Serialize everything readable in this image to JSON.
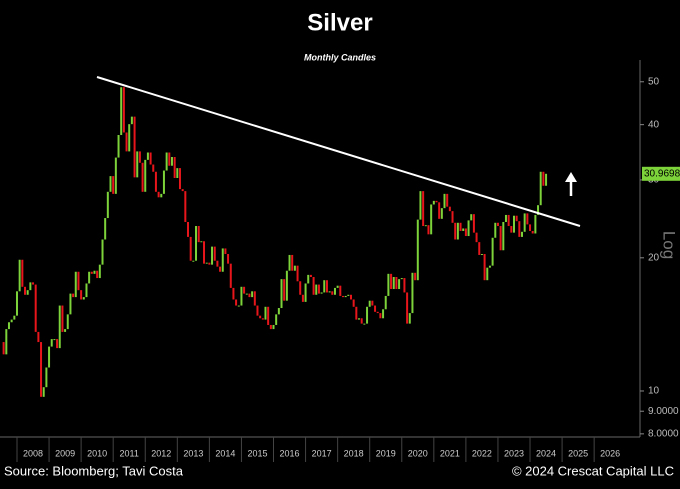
{
  "chart_data": {
    "type": "candlestick",
    "title": "Silver",
    "subtitle": "Monthly Candles",
    "y_axis_label": "Log",
    "log_scale": true,
    "up_color": "#7dd33a",
    "down_color": "#e8161b",
    "last_price": 30.9698,
    "source": "Source: Bloomberg; Tavi Costa",
    "copyright": "© 2024 Crescat Capital LLC",
    "xlim": [
      2007.47,
      2027.43
    ],
    "xticks": [
      2008,
      2009,
      2010,
      2011,
      2012,
      2013,
      2014,
      2015,
      2016,
      2017,
      2018,
      2019,
      2020,
      2021,
      2022,
      2023,
      2024,
      2025,
      2026
    ],
    "ylim": [
      7.87,
      56
    ],
    "yticks": [
      {
        "value": 8,
        "label": "8.0000"
      },
      {
        "value": 9,
        "label": "9.0000"
      },
      10,
      20,
      30,
      40,
      50
    ],
    "series": [
      {
        "name": "Silver",
        "x": [
          2007.5,
          2007.583,
          2007.667,
          2007.75,
          2007.833,
          2007.917,
          2008,
          2008.083,
          2008.167,
          2008.25,
          2008.333,
          2008.417,
          2008.5,
          2008.583,
          2008.667,
          2008.75,
          2008.833,
          2008.917,
          2009,
          2009.083,
          2009.167,
          2009.25,
          2009.333,
          2009.417,
          2009.5,
          2009.583,
          2009.667,
          2009.75,
          2009.833,
          2009.917,
          2010,
          2010.083,
          2010.167,
          2010.25,
          2010.333,
          2010.417,
          2010.5,
          2010.583,
          2010.667,
          2010.75,
          2010.833,
          2010.917,
          2011,
          2011.083,
          2011.167,
          2011.25,
          2011.333,
          2011.417,
          2011.5,
          2011.583,
          2011.667,
          2011.75,
          2011.833,
          2011.917,
          2012,
          2012.083,
          2012.167,
          2012.25,
          2012.333,
          2012.417,
          2012.5,
          2012.583,
          2012.667,
          2012.75,
          2012.833,
          2012.917,
          2013,
          2013.083,
          2013.167,
          2013.25,
          2013.333,
          2013.417,
          2013.5,
          2013.583,
          2013.667,
          2013.75,
          2013.833,
          2013.917,
          2014,
          2014.083,
          2014.167,
          2014.25,
          2014.333,
          2014.417,
          2014.5,
          2014.583,
          2014.667,
          2014.75,
          2014.833,
          2014.917,
          2015,
          2015.083,
          2015.167,
          2015.25,
          2015.333,
          2015.417,
          2015.5,
          2015.583,
          2015.667,
          2015.75,
          2015.833,
          2015.917,
          2016,
          2016.083,
          2016.167,
          2016.25,
          2016.333,
          2016.417,
          2016.5,
          2016.583,
          2016.667,
          2016.75,
          2016.833,
          2016.917,
          2017,
          2017.083,
          2017.167,
          2017.25,
          2017.333,
          2017.417,
          2017.5,
          2017.583,
          2017.667,
          2017.75,
          2017.833,
          2017.917,
          2018,
          2018.083,
          2018.167,
          2018.25,
          2018.333,
          2018.417,
          2018.5,
          2018.583,
          2018.667,
          2018.75,
          2018.833,
          2018.917,
          2019,
          2019.083,
          2019.167,
          2019.25,
          2019.333,
          2019.417,
          2019.5,
          2019.583,
          2019.667,
          2019.75,
          2019.833,
          2019.917,
          2020,
          2020.083,
          2020.167,
          2020.25,
          2020.333,
          2020.417,
          2020.5,
          2020.583,
          2020.667,
          2020.75,
          2020.833,
          2020.917,
          2021,
          2021.083,
          2021.167,
          2021.25,
          2021.333,
          2021.417,
          2021.5,
          2021.583,
          2021.667,
          2021.75,
          2021.833,
          2021.917,
          2022,
          2022.083,
          2022.167,
          2022.25,
          2022.333,
          2022.417,
          2022.5,
          2022.583,
          2022.667,
          2022.75,
          2022.833,
          2022.917,
          2023,
          2023.083,
          2023.167,
          2023.25,
          2023.333,
          2023.417,
          2023.5,
          2023.583,
          2023.667,
          2023.75,
          2023.833,
          2023.917,
          2024,
          2024.083,
          2024.167,
          2024.25,
          2024.333,
          2024.417,
          2024.5
        ],
        "values": [
          12.9,
          12.1,
          13.8,
          14.3,
          14.5,
          14.8,
          16.8,
          19.8,
          17.2,
          16.5,
          16.9,
          17.6,
          17.4,
          13.6,
          12.9,
          9.7,
          10.2,
          11.3,
          12.6,
          13.1,
          13.1,
          12.5,
          15.6,
          13.6,
          13.8,
          14.9,
          16.6,
          16.3,
          18.6,
          16.9,
          16.1,
          16.3,
          17.5,
          18.6,
          18.4,
          18.7,
          18.0,
          19.3,
          22.0,
          24.6,
          28.2,
          30.6,
          27.9,
          33.7,
          37.9,
          48.6,
          38.4,
          34.8,
          40.1,
          41.7,
          30.4,
          34.8,
          32.8,
          28.2,
          33.3,
          34.6,
          32.5,
          31.3,
          28.2,
          27.4,
          27.9,
          31.5,
          34.6,
          32.3,
          33.8,
          30.3,
          31.9,
          28.6,
          28.3,
          24.1,
          22.3,
          19.7,
          19.7,
          23.6,
          21.7,
          21.8,
          19.4,
          19.5,
          19.3,
          21.2,
          19.7,
          19.1,
          18.6,
          21.0,
          20.4,
          19.4,
          17.1,
          16.1,
          15.6,
          15.6,
          17.2,
          16.6,
          16.6,
          16.3,
          16.8,
          15.6,
          14.8,
          14.6,
          14.5,
          15.5,
          14.1,
          13.8,
          14.1,
          14.9,
          15.4,
          17.9,
          16.0,
          18.7,
          20.3,
          18.7,
          19.2,
          17.7,
          16.5,
          15.9,
          17.5,
          18.3,
          18.1,
          16.5,
          17.4,
          16.6,
          16.7,
          17.8,
          16.7,
          16.8,
          16.5,
          17.1,
          17.3,
          16.4,
          16.3,
          16.4,
          16.5,
          16.1,
          15.5,
          14.5,
          14.6,
          14.2,
          14.2,
          15.5,
          16.0,
          15.6,
          15.1,
          15.0,
          14.6,
          15.3,
          16.4,
          18.4,
          17.0,
          18.1,
          17.0,
          17.9,
          18.0,
          16.7,
          14.2,
          15.0,
          18.5,
          17.8,
          24.4,
          28.3,
          23.6,
          23.7,
          22.6,
          26.4,
          26.9,
          26.7,
          24.5,
          25.9,
          27.9,
          26.1,
          25.5,
          24.0,
          22.0,
          24.0,
          23.0,
          23.3,
          22.4,
          24.3,
          25.1,
          22.8,
          21.7,
          20.3,
          20.4,
          17.8,
          19.0,
          19.2,
          22.2,
          24.0,
          23.6,
          20.8,
          24.1,
          25.0,
          23.6,
          22.8,
          24.9,
          24.2,
          22.3,
          22.9,
          25.2,
          23.8,
          23.0,
          22.7,
          25.0,
          26.3,
          31.3,
          29.1,
          30.97
        ]
      }
    ]
  }
}
